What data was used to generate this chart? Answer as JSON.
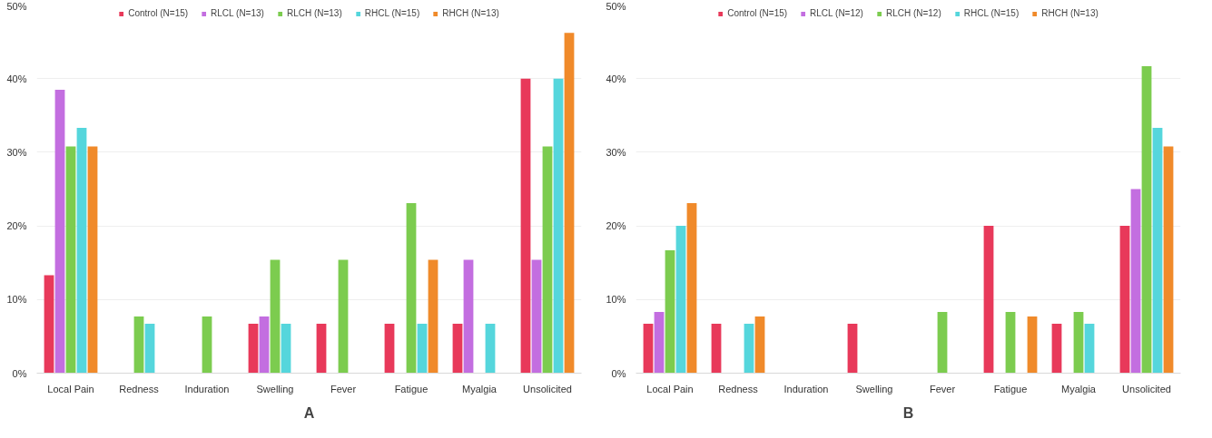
{
  "chart_data": [
    {
      "type": "bar",
      "categories": [
        "Local Pain",
        "Redness",
        "Induration",
        "Swelling",
        "Fever",
        "Fatigue",
        "Myalgia",
        "Unsolicited"
      ],
      "ylim": [
        0,
        50
      ],
      "yticks": [
        {
          "value": 0,
          "label": "0%"
        },
        {
          "value": 10,
          "label": "10%"
        },
        {
          "value": 20,
          "label": "20%"
        },
        {
          "value": 30,
          "label": "30%"
        },
        {
          "value": 40,
          "label": "40%"
        },
        {
          "value": 50,
          "label": "50%"
        }
      ],
      "grid": "y",
      "legend": "top",
      "annotations": [
        "A"
      ],
      "series": [
        {
          "name": "Control (N=15)",
          "color": "#e8395a",
          "values": [
            13.3,
            0,
            0,
            6.7,
            6.7,
            6.7,
            6.7,
            40
          ]
        },
        {
          "name": "RLCL (N=13)",
          "color": "#c36ee0",
          "values": [
            38.5,
            0,
            0,
            7.7,
            0,
            0,
            15.4,
            15.4
          ]
        },
        {
          "name": "RLCH (N=13)",
          "color": "#7ccc4f",
          "values": [
            30.8,
            7.7,
            7.7,
            15.4,
            15.4,
            23.1,
            0,
            30.8
          ]
        },
        {
          "name": "RHCL (N=15)",
          "color": "#55d6dc",
          "values": [
            33.3,
            6.7,
            0,
            6.7,
            0,
            6.7,
            6.7,
            40
          ]
        },
        {
          "name": "RHCH (N=13)",
          "color": "#f08a2a",
          "values": [
            30.8,
            0,
            0,
            0,
            0,
            15.4,
            0,
            46.2
          ]
        }
      ]
    },
    {
      "type": "bar",
      "categories": [
        "Local Pain",
        "Redness",
        "Induration",
        "Swelling",
        "Fever",
        "Fatigue",
        "Myalgia",
        "Unsolicited"
      ],
      "ylim": [
        0,
        50
      ],
      "yticks": [
        {
          "value": 0,
          "label": "0%"
        },
        {
          "value": 10,
          "label": "10%"
        },
        {
          "value": 20,
          "label": "20%"
        },
        {
          "value": 30,
          "label": "30%"
        },
        {
          "value": 40,
          "label": "40%"
        },
        {
          "value": 50,
          "label": "50%"
        }
      ],
      "grid": "y",
      "legend": "top",
      "annotations": [
        "B"
      ],
      "series": [
        {
          "name": "Control (N=15)",
          "color": "#e8395a",
          "values": [
            6.7,
            6.7,
            0,
            6.7,
            0,
            20,
            6.7,
            20
          ]
        },
        {
          "name": "RLCL (N=12)",
          "color": "#c36ee0",
          "values": [
            8.3,
            0,
            0,
            0,
            0,
            0,
            0,
            25
          ]
        },
        {
          "name": "RLCH (N=12)",
          "color": "#7ccc4f",
          "values": [
            16.7,
            0,
            0,
            0,
            8.3,
            8.3,
            8.3,
            41.7
          ]
        },
        {
          "name": "RHCL (N=15)",
          "color": "#55d6dc",
          "values": [
            20,
            6.7,
            0,
            0,
            0,
            0,
            6.7,
            33.3
          ]
        },
        {
          "name": "RHCH (N=13)",
          "color": "#f08a2a",
          "values": [
            23.1,
            7.7,
            0,
            0,
            0,
            7.7,
            0,
            30.8
          ]
        }
      ]
    }
  ]
}
